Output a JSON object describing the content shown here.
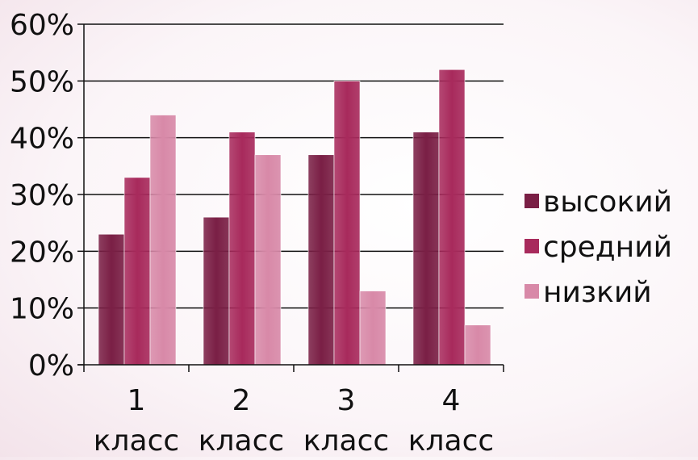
{
  "chart_data": {
    "type": "bar",
    "title": "",
    "xlabel": "",
    "ylabel": "",
    "categories": [
      [
        "1",
        "класс"
      ],
      [
        "2",
        "класс"
      ],
      [
        "3",
        "класс"
      ],
      [
        "4",
        "класс"
      ]
    ],
    "series": [
      {
        "name": "высокий",
        "color": "#7a1f45",
        "values": [
          23,
          26,
          37,
          41
        ]
      },
      {
        "name": "средний",
        "color": "#a82a5c",
        "values": [
          33,
          41,
          50,
          52
        ]
      },
      {
        "name": "низкий",
        "color": "#d889a8",
        "values": [
          44,
          37,
          13,
          7
        ]
      }
    ],
    "ylim": [
      0,
      60
    ],
    "yticks": [
      0,
      10,
      20,
      30,
      40,
      50,
      60
    ],
    "ytick_labels": [
      "0%",
      "10%",
      "20%",
      "30%",
      "40%",
      "50%",
      "60%"
    ],
    "grid": true,
    "legend_position": "right"
  }
}
